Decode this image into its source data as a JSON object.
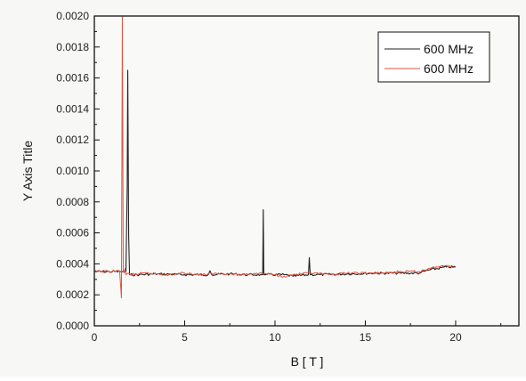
{
  "chart_data": {
    "type": "line",
    "xlabel": "B [ T ]",
    "ylabel": "Y Axis Title",
    "xlim": [
      0,
      23.5
    ],
    "ylim": [
      0,
      0.002
    ],
    "xticks": [
      0,
      5,
      10,
      15,
      20
    ],
    "xtick_labels": [
      "0",
      "5",
      "10",
      "15",
      "20"
    ],
    "yticks": [
      0,
      0.0002,
      0.0004,
      0.0006,
      0.0008,
      0.001,
      0.0012,
      0.0014,
      0.0016,
      0.0018,
      0.002
    ],
    "ytick_labels": [
      "0.0000",
      "0.0002",
      "0.0004",
      "0.0006",
      "0.0008",
      "0.0010",
      "0.0012",
      "0.0014",
      "0.0016",
      "0.0018",
      "0.0020"
    ],
    "grid": false,
    "legend_position": "top-right",
    "series": [
      {
        "name": "600 MHz",
        "color": "#222222",
        "x": [
          0,
          1.0,
          1.5,
          1.75,
          1.82,
          1.85,
          1.9,
          1.95,
          2.0,
          2.5,
          3.5,
          5.0,
          6.3,
          6.4,
          6.5,
          7.5,
          8.5,
          9.2,
          9.32,
          9.35,
          9.38,
          9.5,
          10.5,
          11.0,
          11.85,
          11.9,
          11.95,
          12.5,
          14.0,
          15.5,
          17.0,
          18.0,
          18.5,
          19.5,
          20.0
        ],
        "y": [
          0.00035,
          0.00035,
          0.00035,
          0.00035,
          0.0009,
          0.00165,
          0.00058,
          0.00033,
          0.00033,
          0.00033,
          0.000335,
          0.00033,
          0.00033,
          0.000355,
          0.00033,
          0.000335,
          0.00033,
          0.00033,
          0.00033,
          0.00075,
          0.00033,
          0.00033,
          0.00033,
          0.00032,
          0.00033,
          0.00044,
          0.00033,
          0.00033,
          0.000335,
          0.00034,
          0.00034,
          0.00034,
          0.00036,
          0.00038,
          0.00038
        ]
      },
      {
        "name": "600 MHz",
        "color": "#e2533e",
        "x": [
          0,
          0.8,
          1.4,
          1.5,
          1.55,
          1.6,
          1.65,
          1.7,
          1.75,
          1.9,
          2.0,
          3.0,
          4.0,
          5.0,
          6.0,
          7.0,
          8.0,
          9.0,
          10.0,
          10.5,
          11.0,
          12.0,
          13.0,
          14.0,
          15.0,
          16.0,
          17.0,
          18.0,
          18.5,
          19.0,
          19.5,
          20.0
        ],
        "y": [
          0.00035,
          0.00035,
          0.000355,
          0.00018,
          0.002,
          0.00036,
          0.00034,
          0.00037,
          0.00033,
          0.00034,
          0.00033,
          0.00034,
          0.00033,
          0.00034,
          0.00033,
          0.00034,
          0.00033,
          0.00034,
          0.00033,
          0.00032,
          0.00033,
          0.00034,
          0.00033,
          0.00034,
          0.00034,
          0.00034,
          0.00035,
          0.00035,
          0.00037,
          0.00038,
          0.00039,
          0.00038
        ]
      }
    ]
  }
}
